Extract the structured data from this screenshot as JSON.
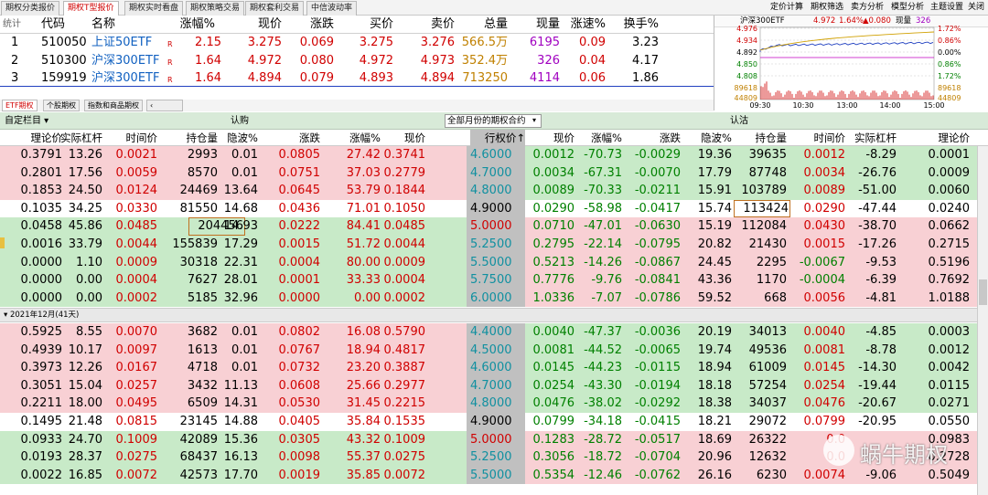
{
  "top_tabs": [
    "期权分类报价",
    "期权T型报价",
    "期权实时看盘",
    "期权策略交易",
    "期权套利交易",
    "中信波动率"
  ],
  "active_top_tab": "期权T型报价",
  "right_menu": [
    "定价计算",
    "期权筛选",
    "卖方分析",
    "模型分析",
    "主题设置",
    "关闭"
  ],
  "quote_header": {
    "stat": "统计",
    "cols": [
      "代码",
      "名称",
      "涨幅%",
      "现价",
      "涨跌",
      "买价",
      "卖价",
      "总量",
      "现量",
      "涨速%",
      "换手%"
    ]
  },
  "quotes": [
    {
      "idx": "1",
      "code": "510050",
      "name": "上证50ETF",
      "flag": "R",
      "chg_pct": "2.15",
      "price": "3.275",
      "chg": "0.069",
      "bid": "3.275",
      "ask": "3.276",
      "vol": "566.5万",
      "cur": "6195",
      "speed": "0.09",
      "turn": "3.23"
    },
    {
      "idx": "2",
      "code": "510300",
      "name": "沪深300ETF",
      "flag": "R",
      "chg_pct": "1.64",
      "price": "4.972",
      "chg": "0.080",
      "bid": "4.972",
      "ask": "4.973",
      "vol": "352.4万",
      "cur": "326",
      "speed": "0.04",
      "turn": "4.17"
    },
    {
      "idx": "3",
      "code": "159919",
      "name": "沪深300ETF",
      "flag": "R",
      "chg_pct": "1.64",
      "price": "4.894",
      "chg": "0.079",
      "bid": "4.893",
      "ask": "4.894",
      "vol": "713250",
      "cur": "4114",
      "speed": "0.06",
      "turn": "1.86"
    }
  ],
  "mini": {
    "name": "沪深300ETF",
    "price": "4.972",
    "pct": "1.64%",
    "chg": "▲0.080",
    "vol_label": "现量",
    "vol": "326",
    "left_ticks": [
      "4.976",
      "4.934",
      "4.892",
      "4.850",
      "4.808",
      "89618",
      "44809"
    ],
    "right_ticks": [
      "1.72%",
      "0.86%",
      "0.00%",
      "0.86%",
      "1.72%",
      "89618",
      "44809"
    ],
    "times": [
      "09:30",
      "10:30",
      "13:00",
      "14:00",
      "15:00"
    ]
  },
  "sub_tabs": [
    "ETF期权",
    "个股期权",
    "指数和商品期权"
  ],
  "ctrl": {
    "custom": "自定栏目 ▾",
    "call": "认购",
    "month": "全部月份的期权合约",
    "put": "认沽"
  },
  "col_headers": [
    "理论价",
    "实际杠杆",
    "时间价",
    "持仓量",
    "隐波%",
    "涨跌",
    "涨幅%",
    "现价",
    "行权价↑",
    "现价",
    "涨幅%",
    "涨跌",
    "隐波%",
    "持仓量",
    "时间价",
    "实际杠杆",
    "理论价"
  ],
  "group_label": "▾ 2021年12月(41天)",
  "rows_a": [
    [
      "0.3791",
      "13.26",
      "0.0021",
      "2993",
      "0.01",
      "0.0805",
      "27.42",
      "0.3741",
      "4.6000",
      "0.0012",
      "-70.73",
      "-0.0029",
      "19.36",
      "39635",
      "0.0012",
      "-8.29",
      "0.0001"
    ],
    [
      "0.2801",
      "17.56",
      "0.0059",
      "8570",
      "0.01",
      "0.0751",
      "37.03",
      "0.2779",
      "4.7000",
      "0.0034",
      "-67.31",
      "-0.0070",
      "17.79",
      "87748",
      "0.0034",
      "-26.76",
      "0.0009"
    ],
    [
      "0.1853",
      "24.50",
      "0.0124",
      "24469",
      "13.64",
      "0.0645",
      "53.79",
      "0.1844",
      "4.8000",
      "0.0089",
      "-70.33",
      "-0.0211",
      "15.91",
      "103789",
      "0.0089",
      "-51.00",
      "0.0060"
    ],
    [
      "0.1035",
      "34.25",
      "0.0330",
      "81550",
      "14.68",
      "0.0436",
      "71.01",
      "0.1050",
      "4.9000",
      "0.0290",
      "-58.98",
      "-0.0417",
      "15.74",
      "113424",
      "0.0290",
      "-47.44",
      "0.0240"
    ],
    [
      "0.0458",
      "45.86",
      "0.0485",
      "204456",
      "14.93",
      "0.0222",
      "84.41",
      "0.0485",
      "5.0000",
      "0.0710",
      "-47.01",
      "-0.0630",
      "15.19",
      "112084",
      "0.0430",
      "-38.70",
      "0.0662"
    ],
    [
      "0.0016",
      "33.79",
      "0.0044",
      "155839",
      "17.29",
      "0.0015",
      "51.72",
      "0.0044",
      "5.2500",
      "0.2795",
      "-22.14",
      "-0.0795",
      "20.82",
      "21430",
      "0.0015",
      "-17.26",
      "0.2715"
    ],
    [
      "0.0000",
      "1.10",
      "0.0009",
      "30318",
      "22.31",
      "0.0004",
      "80.00",
      "0.0009",
      "5.5000",
      "0.5213",
      "-14.26",
      "-0.0867",
      "24.45",
      "2295",
      "-0.0067",
      "-9.53",
      "0.5196"
    ],
    [
      "0.0000",
      "0.00",
      "0.0004",
      "7627",
      "28.01",
      "0.0001",
      "33.33",
      "0.0004",
      "5.7500",
      "0.7776",
      "-9.76",
      "-0.0841",
      "43.36",
      "1170",
      "-0.0004",
      "-6.39",
      "0.7692"
    ],
    [
      "0.0000",
      "0.00",
      "0.0002",
      "5185",
      "32.96",
      "0.0000",
      "0.00",
      "0.0002",
      "6.0000",
      "1.0336",
      "-7.07",
      "-0.0786",
      "59.52",
      "668",
      "0.0056",
      "-4.81",
      "1.0188"
    ]
  ],
  "rows_b": [
    [
      "0.5925",
      "8.55",
      "0.0070",
      "3682",
      "0.01",
      "0.0802",
      "16.08",
      "0.5790",
      "4.4000",
      "0.0040",
      "-47.37",
      "-0.0036",
      "20.19",
      "34013",
      "0.0040",
      "-4.85",
      "0.0003"
    ],
    [
      "0.4939",
      "10.17",
      "0.0097",
      "1613",
      "0.01",
      "0.0767",
      "18.94",
      "0.4817",
      "4.5000",
      "0.0081",
      "-44.52",
      "-0.0065",
      "19.74",
      "49536",
      "0.0081",
      "-8.78",
      "0.0012"
    ],
    [
      "0.3973",
      "12.26",
      "0.0167",
      "4718",
      "0.01",
      "0.0732",
      "23.20",
      "0.3887",
      "4.6000",
      "0.0145",
      "-44.23",
      "-0.0115",
      "18.94",
      "61009",
      "0.0145",
      "-14.30",
      "0.0042"
    ],
    [
      "0.3051",
      "15.04",
      "0.0257",
      "3432",
      "11.13",
      "0.0608",
      "25.66",
      "0.2977",
      "4.7000",
      "0.0254",
      "-43.30",
      "-0.0194",
      "18.18",
      "57254",
      "0.0254",
      "-19.44",
      "0.0115"
    ],
    [
      "0.2211",
      "18.00",
      "0.0495",
      "6509",
      "14.31",
      "0.0530",
      "31.45",
      "0.2215",
      "4.8000",
      "0.0476",
      "-38.02",
      "-0.0292",
      "18.38",
      "34037",
      "0.0476",
      "-20.67",
      "0.0271"
    ],
    [
      "0.1495",
      "21.48",
      "0.0815",
      "23145",
      "14.88",
      "0.0405",
      "35.84",
      "0.1535",
      "4.9000",
      "0.0799",
      "-34.18",
      "-0.0415",
      "18.21",
      "29072",
      "0.0799",
      "-20.95",
      "0.0550"
    ],
    [
      "0.0933",
      "24.70",
      "0.1009",
      "42089",
      "15.36",
      "0.0305",
      "43.32",
      "0.1009",
      "5.0000",
      "0.1283",
      "-28.72",
      "-0.0517",
      "18.69",
      "26322",
      "0.0",
      "",
      "0.0983"
    ],
    [
      "0.0193",
      "28.37",
      "0.0275",
      "68437",
      "16.13",
      "0.0098",
      "55.37",
      "0.0275",
      "5.2500",
      "0.3056",
      "-18.72",
      "-0.0704",
      "20.96",
      "12632",
      "0.0",
      "",
      "0.2728"
    ],
    [
      "0.0022",
      "16.85",
      "0.0072",
      "42573",
      "17.70",
      "0.0019",
      "35.85",
      "0.0072",
      "5.5000",
      "0.5354",
      "-12.46",
      "-0.0762",
      "26.16",
      "6230",
      "0.0074",
      "-9.06",
      "0.5049"
    ]
  ],
  "watermark": "蜗牛期权"
}
